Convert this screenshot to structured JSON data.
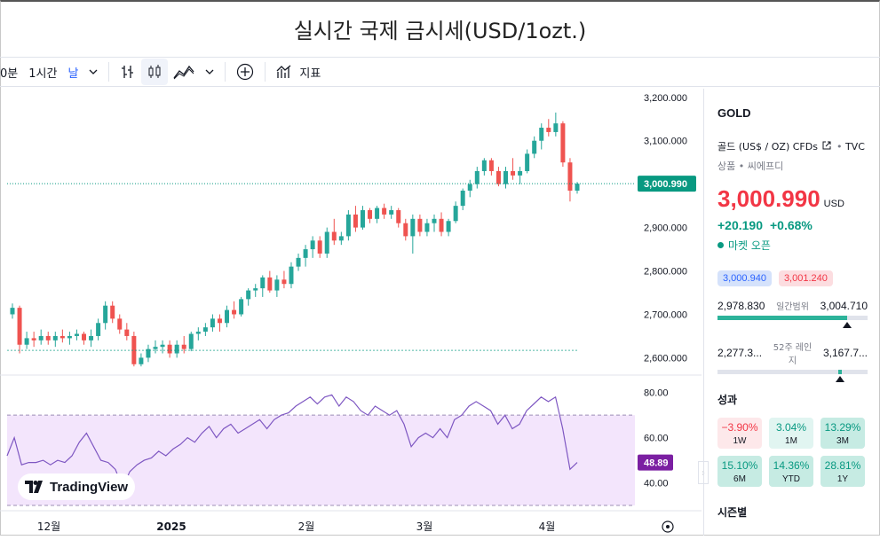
{
  "title": "실시간 국제 금시세(USD/1ozt.)",
  "toolbar": {
    "interval_partial": "0분",
    "interval_1h": "1시간",
    "interval_day": "날",
    "indicators_label": "지표"
  },
  "chart_data": {
    "type": "candlestick",
    "ylim": [
      2560,
      3220
    ],
    "y_ticks": [
      "3,200.000",
      "3,100.000",
      "3,000.000",
      "2,900.000",
      "2,800.000",
      "2,700.000",
      "2,600.000"
    ],
    "x_ticks": [
      "12월",
      "2025",
      "2월",
      "3월",
      "4월"
    ],
    "current_price_label": "3,000.990",
    "candles": [
      [
        2700,
        2725,
        2690,
        2715
      ],
      [
        2715,
        2720,
        2610,
        2630
      ],
      [
        2630,
        2660,
        2620,
        2645
      ],
      [
        2645,
        2660,
        2625,
        2640
      ],
      [
        2640,
        2665,
        2630,
        2650
      ],
      [
        2650,
        2660,
        2630,
        2640
      ],
      [
        2640,
        2660,
        2625,
        2650
      ],
      [
        2650,
        2665,
        2635,
        2645
      ],
      [
        2645,
        2660,
        2630,
        2650
      ],
      [
        2650,
        2665,
        2640,
        2655
      ],
      [
        2655,
        2660,
        2630,
        2640
      ],
      [
        2640,
        2665,
        2625,
        2650
      ],
      [
        2650,
        2690,
        2640,
        2680
      ],
      [
        2680,
        2730,
        2665,
        2720
      ],
      [
        2720,
        2730,
        2680,
        2690
      ],
      [
        2690,
        2700,
        2655,
        2665
      ],
      [
        2665,
        2680,
        2640,
        2650
      ],
      [
        2650,
        2660,
        2580,
        2585
      ],
      [
        2585,
        2610,
        2580,
        2600
      ],
      [
        2600,
        2630,
        2590,
        2620
      ],
      [
        2620,
        2640,
        2610,
        2625
      ],
      [
        2625,
        2640,
        2610,
        2630
      ],
      [
        2630,
        2640,
        2600,
        2610
      ],
      [
        2610,
        2640,
        2600,
        2630
      ],
      [
        2630,
        2650,
        2610,
        2620
      ],
      [
        2620,
        2660,
        2615,
        2655
      ],
      [
        2655,
        2670,
        2640,
        2660
      ],
      [
        2660,
        2680,
        2650,
        2670
      ],
      [
        2670,
        2700,
        2660,
        2690
      ],
      [
        2690,
        2700,
        2660,
        2680
      ],
      [
        2680,
        2720,
        2670,
        2710
      ],
      [
        2710,
        2730,
        2690,
        2700
      ],
      [
        2700,
        2740,
        2695,
        2735
      ],
      [
        2735,
        2760,
        2720,
        2755
      ],
      [
        2755,
        2770,
        2740,
        2760
      ],
      [
        2760,
        2790,
        2740,
        2785
      ],
      [
        2785,
        2800,
        2750,
        2755
      ],
      [
        2755,
        2790,
        2740,
        2780
      ],
      [
        2780,
        2800,
        2760,
        2770
      ],
      [
        2770,
        2820,
        2760,
        2810
      ],
      [
        2810,
        2840,
        2800,
        2830
      ],
      [
        2830,
        2860,
        2810,
        2850
      ],
      [
        2850,
        2880,
        2830,
        2870
      ],
      [
        2870,
        2880,
        2830,
        2840
      ],
      [
        2840,
        2900,
        2830,
        2890
      ],
      [
        2890,
        2920,
        2860,
        2870
      ],
      [
        2870,
        2890,
        2860,
        2880
      ],
      [
        2880,
        2940,
        2870,
        2930
      ],
      [
        2930,
        2950,
        2890,
        2900
      ],
      [
        2900,
        2950,
        2895,
        2940
      ],
      [
        2940,
        2945,
        2910,
        2920
      ],
      [
        2920,
        2950,
        2910,
        2945
      ],
      [
        2945,
        2955,
        2920,
        2930
      ],
      [
        2930,
        2950,
        2920,
        2940
      ],
      [
        2940,
        2945,
        2900,
        2910
      ],
      [
        2910,
        2920,
        2870,
        2880
      ],
      [
        2880,
        2930,
        2840,
        2920
      ],
      [
        2920,
        2930,
        2880,
        2890
      ],
      [
        2890,
        2920,
        2880,
        2910
      ],
      [
        2910,
        2930,
        2890,
        2920
      ],
      [
        2920,
        2935,
        2880,
        2890
      ],
      [
        2890,
        2920,
        2880,
        2915
      ],
      [
        2915,
        2960,
        2910,
        2950
      ],
      [
        2950,
        2990,
        2940,
        2985
      ],
      [
        2985,
        3010,
        2970,
        3000
      ],
      [
        3000,
        3040,
        2990,
        3030
      ],
      [
        3030,
        3060,
        3020,
        3055
      ],
      [
        3055,
        3060,
        3020,
        3030
      ],
      [
        3030,
        3040,
        2995,
        3000
      ],
      [
        3000,
        3040,
        2990,
        3030
      ],
      [
        3030,
        3060,
        3010,
        3020
      ],
      [
        3020,
        3040,
        3000,
        3030
      ],
      [
        3030,
        3080,
        3025,
        3070
      ],
      [
        3070,
        3110,
        3060,
        3100
      ],
      [
        3100,
        3140,
        3080,
        3130
      ],
      [
        3130,
        3150,
        3110,
        3120
      ],
      [
        3120,
        3165,
        3110,
        3140
      ],
      [
        3140,
        3145,
        3040,
        3050
      ],
      [
        3050,
        3060,
        2960,
        2985
      ],
      [
        2985,
        3005,
        2978,
        3001
      ]
    ],
    "rsi": {
      "ylim": [
        30,
        85
      ],
      "y_ticks": [
        "80.00",
        "60.00",
        "40.00"
      ],
      "upper": 70,
      "lower": 30,
      "current_label": "48.89",
      "values": [
        52,
        60,
        48,
        49,
        49,
        50,
        48,
        50,
        49,
        52,
        58,
        62,
        56,
        50,
        49,
        46,
        38,
        45,
        48,
        50,
        51,
        54,
        52,
        55,
        57,
        60,
        58,
        62,
        65,
        60,
        64,
        66,
        62,
        64,
        66,
        68,
        64,
        68,
        70,
        71,
        74,
        76,
        78,
        75,
        78,
        79,
        74,
        78,
        76,
        72,
        70,
        74,
        72,
        70,
        72,
        66,
        56,
        60,
        62,
        60,
        64,
        60,
        68,
        70,
        74,
        76,
        74,
        72,
        66,
        70,
        64,
        66,
        72,
        75,
        78,
        76,
        78,
        64,
        46,
        49
      ]
    }
  },
  "side": {
    "symbol": "GOLD",
    "name": "골드 (US$ / OZ) CFDs",
    "source": "TVC",
    "type": "상품",
    "exchange": "씨에프디",
    "price": "3,000.990",
    "currency": "USD",
    "change": "+20.190",
    "change_pct": "+0.68%",
    "market_status": "마켓 오픈",
    "bid": "3,000.940",
    "ask": "3,001.240",
    "day_low": "2,978.830",
    "day_range_label": "일간범위",
    "day_high": "3,004.710",
    "day_pos": 0.87,
    "wk_low": "2,277.3...",
    "wk_range_label": "52주 레인지",
    "wk_high": "3,167.7...",
    "wk_pos": 0.82,
    "perf_title": "성과",
    "perf": [
      {
        "v": "−3.90%",
        "l": "1W",
        "cls": "neg"
      },
      {
        "v": "3.04%",
        "l": "1M",
        "cls": "pos1"
      },
      {
        "v": "13.29%",
        "l": "3M",
        "cls": "pos2"
      },
      {
        "v": "15.10%",
        "l": "6M",
        "cls": "pos2"
      },
      {
        "v": "14.36%",
        "l": "YTD",
        "cls": "pos2"
      },
      {
        "v": "28.81%",
        "l": "1Y",
        "cls": "pos2"
      }
    ],
    "more_title": "시즌별"
  },
  "logo_text": "TradingView",
  "colors": {
    "up": "#26a69a",
    "down": "#ef5350",
    "rsi": "#7e57c2",
    "accent": "#2962ff"
  }
}
